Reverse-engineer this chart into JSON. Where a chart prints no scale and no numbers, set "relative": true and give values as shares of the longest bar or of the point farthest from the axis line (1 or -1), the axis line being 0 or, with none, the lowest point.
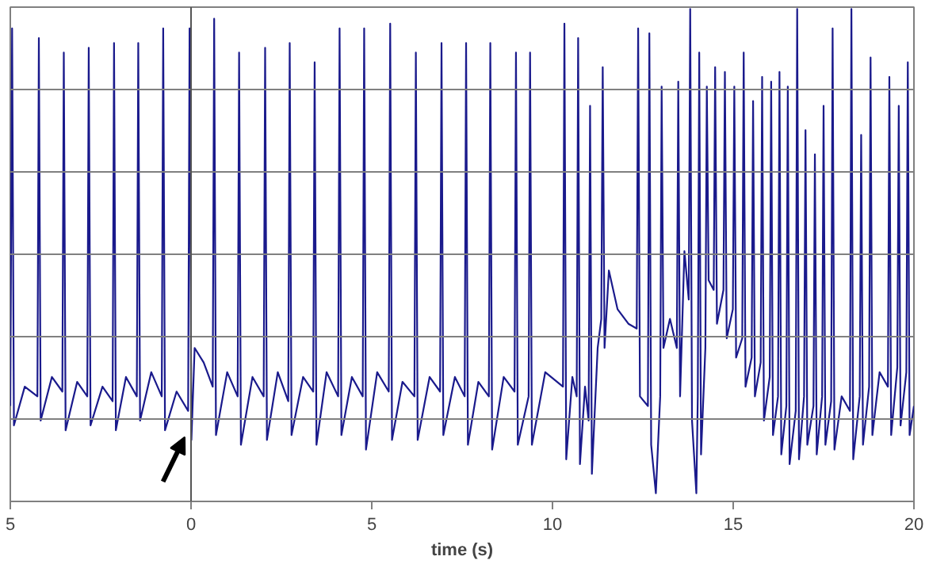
{
  "chart_data": {
    "type": "line",
    "relative": true,
    "xlabel": "time (s)",
    "xlim": [
      -5,
      20
    ],
    "xticks": [
      {
        "value": -5,
        "label": "5"
      },
      0,
      5,
      10,
      15,
      20
    ],
    "grid": "y",
    "marker": "none",
    "line_style": "solid",
    "ref_lines": [
      {
        "axis": "x",
        "value": 0,
        "color": "#555555"
      }
    ],
    "series": [
      {
        "color": "#1a1a8c",
        "x": [
          -5.0,
          -4.95,
          -4.9,
          -4.6,
          -4.25,
          -4.21,
          -4.16,
          -3.85,
          -3.56,
          -3.52,
          -3.47,
          -3.15,
          -2.87,
          -2.83,
          -2.78,
          -2.45,
          -2.17,
          -2.13,
          -2.08,
          -1.8,
          -1.5,
          -1.46,
          -1.41,
          -1.1,
          -0.81,
          -0.77,
          -0.72,
          -0.4,
          -0.08,
          -0.04,
          0.01,
          0.1,
          0.35,
          0.6,
          0.64,
          0.69,
          1.0,
          1.29,
          1.33,
          1.38,
          1.7,
          2.01,
          2.05,
          2.1,
          2.4,
          2.69,
          2.73,
          2.78,
          3.1,
          3.38,
          3.42,
          3.47,
          3.75,
          4.07,
          4.11,
          4.16,
          4.45,
          4.75,
          4.79,
          4.84,
          5.15,
          5.47,
          5.51,
          5.56,
          5.85,
          6.18,
          6.22,
          6.27,
          6.6,
          6.89,
          6.93,
          6.98,
          7.3,
          7.57,
          7.61,
          7.66,
          7.95,
          8.24,
          8.28,
          8.33,
          8.65,
          8.95,
          8.99,
          9.04,
          9.34,
          9.38,
          9.43,
          9.8,
          10.29,
          10.33,
          10.38,
          10.55,
          10.67,
          10.71,
          10.76,
          10.9,
          11.0,
          11.04,
          11.09,
          11.25,
          11.35,
          11.39,
          11.44,
          11.56,
          11.8,
          12.1,
          12.33,
          12.37,
          12.42,
          12.64,
          12.68,
          12.73,
          12.86,
          12.98,
          13.02,
          13.07,
          13.25,
          13.44,
          13.48,
          13.53,
          13.65,
          13.77,
          13.81,
          13.86,
          13.98,
          14.02,
          14.06,
          14.11,
          14.23,
          14.27,
          14.32,
          14.46,
          14.5,
          14.55,
          14.73,
          14.77,
          14.82,
          14.99,
          15.03,
          15.08,
          15.25,
          15.29,
          15.34,
          15.51,
          15.55,
          15.6,
          15.76,
          15.8,
          15.85,
          16.01,
          16.05,
          16.1,
          16.24,
          16.28,
          16.33,
          16.47,
          16.51,
          16.56,
          16.73,
          16.77,
          16.82,
          16.96,
          17.0,
          17.05,
          17.22,
          17.26,
          17.31,
          17.46,
          17.5,
          17.55,
          17.71,
          17.75,
          17.8,
          18.0,
          18.23,
          18.27,
          18.32,
          18.5,
          18.54,
          18.59,
          18.76,
          18.8,
          18.85,
          19.05,
          19.28,
          19.32,
          19.37,
          19.54,
          19.58,
          19.63,
          19.79,
          19.83,
          19.88,
          20.0
        ],
        "values": [
          0.18,
          0.96,
          0.14,
          0.22,
          0.2,
          0.94,
          0.15,
          0.24,
          0.21,
          0.91,
          0.13,
          0.23,
          0.2,
          0.92,
          0.14,
          0.22,
          0.19,
          0.93,
          0.13,
          0.24,
          0.2,
          0.93,
          0.15,
          0.25,
          0.2,
          0.96,
          0.13,
          0.21,
          0.17,
          0.96,
          0.11,
          0.3,
          0.27,
          0.22,
          0.98,
          0.12,
          0.25,
          0.2,
          0.91,
          0.1,
          0.24,
          0.2,
          0.92,
          0.11,
          0.25,
          0.19,
          0.93,
          0.12,
          0.24,
          0.21,
          0.89,
          0.1,
          0.25,
          0.2,
          0.96,
          0.12,
          0.24,
          0.2,
          0.96,
          0.09,
          0.25,
          0.21,
          0.97,
          0.11,
          0.23,
          0.2,
          0.91,
          0.11,
          0.24,
          0.21,
          0.93,
          0.12,
          0.24,
          0.2,
          0.93,
          0.1,
          0.23,
          0.2,
          0.93,
          0.09,
          0.24,
          0.21,
          0.91,
          0.1,
          0.2,
          0.91,
          0.1,
          0.25,
          0.22,
          0.97,
          0.07,
          0.24,
          0.2,
          0.94,
          0.06,
          0.22,
          0.15,
          0.8,
          0.04,
          0.3,
          0.36,
          0.88,
          0.3,
          0.46,
          0.38,
          0.35,
          0.34,
          0.96,
          0.2,
          0.18,
          0.95,
          0.1,
          0.0,
          0.2,
          0.84,
          0.3,
          0.36,
          0.3,
          0.85,
          0.2,
          0.5,
          0.4,
          1.0,
          0.15,
          0.0,
          0.2,
          0.91,
          0.08,
          0.3,
          0.84,
          0.44,
          0.42,
          0.88,
          0.35,
          0.42,
          0.87,
          0.32,
          0.38,
          0.84,
          0.28,
          0.32,
          0.91,
          0.22,
          0.28,
          0.81,
          0.2,
          0.27,
          0.86,
          0.15,
          0.24,
          0.85,
          0.12,
          0.2,
          0.87,
          0.08,
          0.18,
          0.84,
          0.06,
          0.17,
          1.0,
          0.07,
          0.2,
          0.75,
          0.1,
          0.18,
          0.7,
          0.08,
          0.2,
          0.8,
          0.1,
          0.19,
          0.96,
          0.09,
          0.2,
          0.17,
          1.0,
          0.07,
          0.2,
          0.74,
          0.1,
          0.22,
          0.9,
          0.12,
          0.25,
          0.22,
          0.86,
          0.12,
          0.26,
          0.8,
          0.14,
          0.25,
          0.89,
          0.12,
          0.18
        ]
      }
    ]
  }
}
